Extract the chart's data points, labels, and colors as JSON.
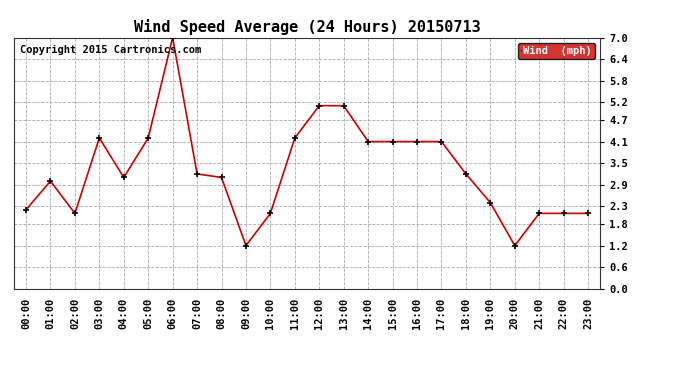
{
  "title": "Wind Speed Average (24 Hours) 20150713",
  "copyright_text": "Copyright 2015 Cartronics.com",
  "x_labels": [
    "00:00",
    "01:00",
    "02:00",
    "03:00",
    "04:00",
    "05:00",
    "06:00",
    "07:00",
    "08:00",
    "09:00",
    "10:00",
    "11:00",
    "12:00",
    "13:00",
    "14:00",
    "15:00",
    "16:00",
    "17:00",
    "18:00",
    "19:00",
    "20:00",
    "21:00",
    "22:00",
    "23:00"
  ],
  "y_values": [
    2.2,
    3.0,
    2.1,
    4.2,
    3.1,
    4.2,
    7.0,
    3.2,
    3.1,
    1.2,
    2.1,
    4.2,
    5.1,
    5.1,
    4.1,
    4.1,
    4.1,
    4.1,
    3.2,
    2.4,
    1.2,
    2.1,
    2.1,
    2.1
  ],
  "y_min": 0.0,
  "y_max": 7.0,
  "y_ticks": [
    0.0,
    0.6,
    1.2,
    1.8,
    2.3,
    2.9,
    3.5,
    4.1,
    4.7,
    5.2,
    5.8,
    6.4,
    7.0
  ],
  "line_color": "#cc0000",
  "marker_color": "#000000",
  "legend_label": "Wind  (mph)",
  "legend_bg": "#cc0000",
  "legend_text_color": "#ffffff",
  "grid_color": "#aaaaaa",
  "background_color": "#ffffff",
  "title_fontsize": 11,
  "axis_fontsize": 7.5,
  "copyright_fontsize": 7.5
}
